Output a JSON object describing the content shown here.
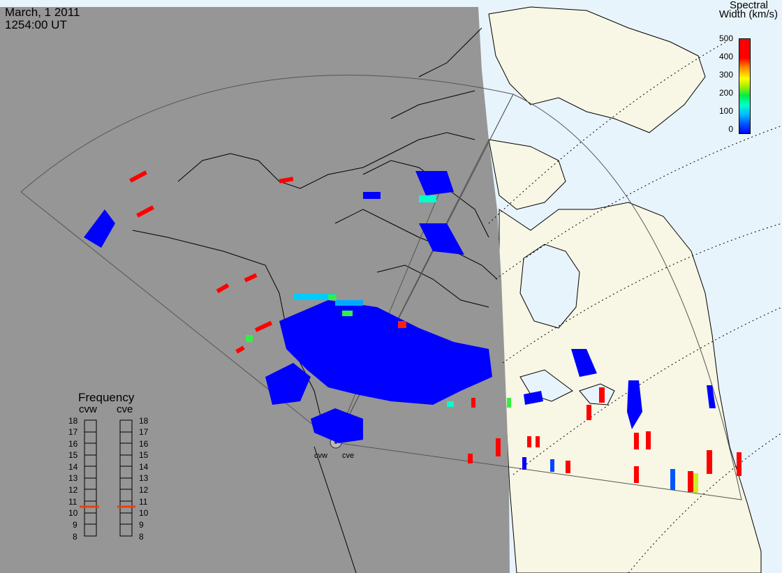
{
  "header": {
    "date": "March, 1 2011",
    "time": "1254:00 UT"
  },
  "colorbar": {
    "title_line1": "Spectral",
    "title_line2": "Width (km/s)",
    "ticks": [
      "500",
      "400",
      "300",
      "200",
      "100",
      "0"
    ]
  },
  "frequency_panel": {
    "title": "Frequency",
    "radars": [
      "cvw",
      "cve"
    ],
    "ticks": [
      "18",
      "17",
      "16",
      "15",
      "14",
      "13",
      "12",
      "11",
      "10",
      "9",
      "8"
    ]
  },
  "sites": {
    "cvw": "cvw",
    "cve": "cve"
  },
  "colors": {
    "night": "#969696",
    "land_day": "#f8f6e4",
    "ocean_day": "#e8f4fc",
    "low_width": "#0000ff",
    "high_width": "#ff0000",
    "freq_marker": "#e84010"
  }
}
